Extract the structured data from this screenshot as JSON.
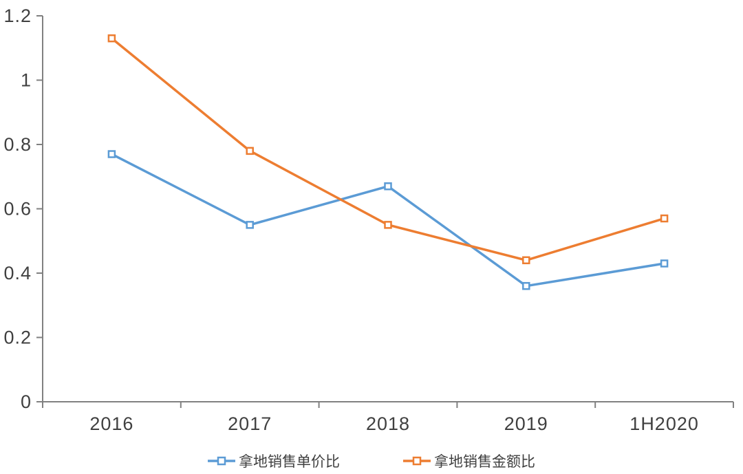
{
  "chart_data": {
    "type": "line",
    "categories": [
      "2016",
      "2017",
      "2018",
      "2019",
      "1H2020"
    ],
    "series": [
      {
        "name": "拿地销售单价比",
        "color": "#5B9BD5",
        "values": [
          0.77,
          0.55,
          0.67,
          0.36,
          0.43
        ]
      },
      {
        "name": "拿地销售金额比",
        "color": "#ED7D31",
        "values": [
          1.13,
          0.78,
          0.55,
          0.44,
          0.57
        ]
      }
    ],
    "ylim": [
      0,
      1.2
    ],
    "yticks": [
      0,
      0.2,
      0.4,
      0.6,
      0.8,
      1,
      1.2
    ],
    "ytick_labels": [
      "0",
      "0.2",
      "0.4",
      "0.6",
      "0.8",
      "1",
      "1.2"
    ],
    "grid": false,
    "legend_position": "bottom",
    "marker": "hollow-square",
    "axis_color": "#808080",
    "tick_label_color": "#404040",
    "background_color": "#FFFFFF"
  }
}
